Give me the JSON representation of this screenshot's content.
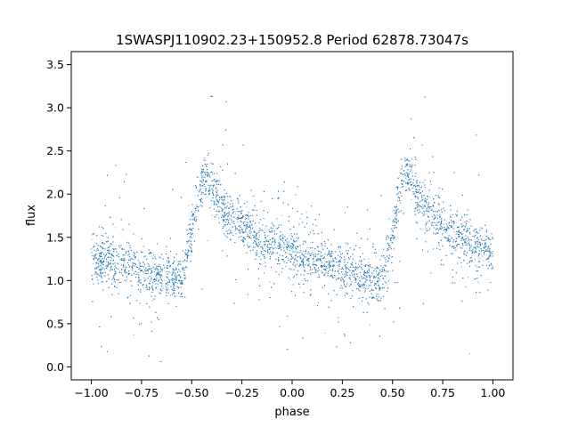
{
  "chart_data": {
    "type": "scatter",
    "title": "1SWASPJ110902.23+150952.8 Period 62878.73047s",
    "xlabel": "phase",
    "ylabel": "flux",
    "xlim": [
      -1.1,
      1.1
    ],
    "ylim": [
      -0.15,
      3.65
    ],
    "x_ticks": [
      -1.0,
      -0.75,
      -0.5,
      -0.25,
      0.0,
      0.25,
      0.5,
      0.75,
      1.0
    ],
    "x_tick_labels": [
      "−1.00",
      "−0.75",
      "−0.50",
      "−0.25",
      "0.00",
      "0.25",
      "0.50",
      "0.75",
      "1.00"
    ],
    "y_ticks": [
      0.0,
      0.5,
      1.0,
      1.5,
      2.0,
      2.5,
      3.0,
      3.5
    ],
    "y_tick_labels": [
      "0.0",
      "0.5",
      "1.0",
      "1.5",
      "2.0",
      "2.5",
      "3.0",
      "3.5"
    ],
    "grid": false,
    "marker_color": "#1f77b4",
    "series": [
      {
        "x": [
          -1.0,
          -0.9,
          -0.8,
          -0.7,
          -0.6,
          -0.55,
          -0.5,
          -0.45,
          -0.43,
          -0.4,
          -0.35,
          -0.3,
          -0.25,
          -0.2,
          -0.15,
          -0.1,
          -0.05,
          0.0,
          0.05,
          0.1,
          0.15,
          0.2,
          0.25,
          0.3,
          0.35,
          0.4,
          0.45,
          0.5,
          0.55,
          0.57,
          0.6,
          0.65,
          0.7,
          0.75,
          0.8,
          0.85,
          0.9,
          0.95,
          1.0
        ],
        "y": [
          1.26,
          1.22,
          1.15,
          1.1,
          1.04,
          1.0,
          1.55,
          2.12,
          2.25,
          2.1,
          1.88,
          1.72,
          1.62,
          1.53,
          1.47,
          1.41,
          1.36,
          1.32,
          1.27,
          1.23,
          1.2,
          1.17,
          1.14,
          1.1,
          1.06,
          1.03,
          1.0,
          1.55,
          2.12,
          2.25,
          2.1,
          1.88,
          1.75,
          1.64,
          1.55,
          1.48,
          1.42,
          1.36,
          1.32
        ]
      }
    ]
  }
}
